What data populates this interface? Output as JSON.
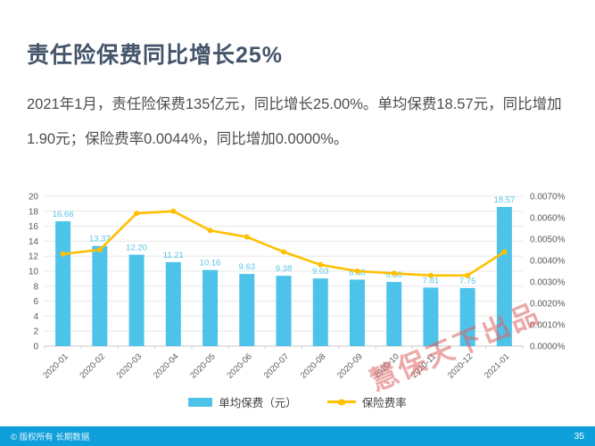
{
  "slide": {
    "title": "责任险保费同比增长25%",
    "body": "2021年1月，责任险保费135亿元，同比增长25.00%。单均保费18.57元，同比增加1.90元；保险费率0.0044%，同比增加0.0000%。",
    "watermark": "慧保天下出品",
    "footer": {
      "copyright": "© 版权所有 长期数据",
      "page_number": "35"
    }
  },
  "colors": {
    "title": "#44546A",
    "bar": "#4EC3E9",
    "bar_label": "#56C5EA",
    "line": "#FFC000",
    "axis_text": "#595959",
    "grid": "#E8E8E8",
    "axis_line": "#C9C9C9",
    "footer_bar": "#0FA0DB",
    "watermark": "#DE6262"
  },
  "chart_data": {
    "type": "bar",
    "combo": "bar+line",
    "title": "",
    "categories": [
      "2020-01",
      "2020-02",
      "2020-03",
      "2020-04",
      "2020-05",
      "2020-06",
      "2020-07",
      "2020-08",
      "2020-09",
      "2020-10",
      "2020-11",
      "2020-12",
      "2021-01"
    ],
    "series": [
      {
        "name": "单均保费（元）",
        "type": "bar",
        "axis": "left",
        "values": [
          16.66,
          13.37,
          12.2,
          11.21,
          10.16,
          9.63,
          9.38,
          9.03,
          8.88,
          8.56,
          7.81,
          7.75,
          18.57
        ]
      },
      {
        "name": "保险费率",
        "type": "line",
        "axis": "right",
        "values_percent": [
          0.0043,
          0.0045,
          0.0062,
          0.0063,
          0.0054,
          0.0051,
          0.0044,
          0.0038,
          0.0035,
          0.0034,
          0.0033,
          0.0033,
          0.0044
        ]
      }
    ],
    "left_axis": {
      "min": 0,
      "max": 20,
      "step": 2
    },
    "right_axis": {
      "min": 0,
      "max": 0.007,
      "step": 0.001,
      "format": "0.0000%"
    },
    "grid": true,
    "legend_position": "bottom",
    "bar_labels_visible": true,
    "x_labels_rotation_deg": -45
  }
}
